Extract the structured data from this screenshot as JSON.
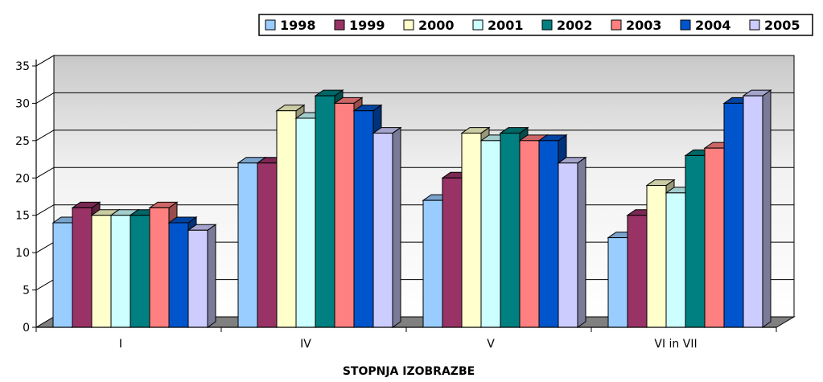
{
  "chart_data": {
    "type": "bar",
    "title": "",
    "xlabel": "STOPNJA IZOBRAZBE",
    "ylabel": "",
    "ylim": [
      0,
      35
    ],
    "yticks": [
      0,
      5,
      10,
      15,
      20,
      25,
      30,
      35
    ],
    "grid": true,
    "legend_position": "top-right",
    "categories": [
      "I",
      "IV",
      "V",
      "VI in VII"
    ],
    "series": [
      {
        "name": "1998",
        "color": "#99ccff",
        "values": [
          14,
          22,
          17,
          12
        ]
      },
      {
        "name": "1999",
        "color": "#993366",
        "values": [
          16,
          22,
          20,
          15
        ]
      },
      {
        "name": "2000",
        "color": "#ffffcc",
        "values": [
          15,
          29,
          26,
          19
        ]
      },
      {
        "name": "2001",
        "color": "#ccffff",
        "values": [
          15,
          28,
          25,
          18
        ]
      },
      {
        "name": "2002",
        "color": "#008080",
        "values": [
          15,
          31,
          26,
          23
        ]
      },
      {
        "name": "2003",
        "color": "#ff8080",
        "values": [
          16,
          30,
          25,
          24
        ]
      },
      {
        "name": "2004",
        "color": "#0055cc",
        "values": [
          14,
          29,
          25,
          30
        ]
      },
      {
        "name": "2005",
        "color": "#ccccff",
        "values": [
          13,
          26,
          22,
          31
        ]
      }
    ]
  }
}
